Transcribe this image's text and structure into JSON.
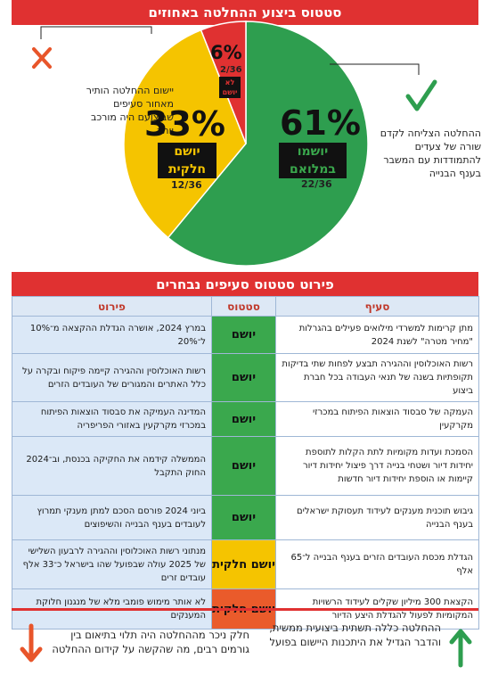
{
  "header": {
    "title": "סטטוס ביצוע ההחלטה באחוזים"
  },
  "section2": {
    "title": "פירוט סטטוס סעיפים נבחרים"
  },
  "chart_data": {
    "type": "pie",
    "slices": [
      {
        "label": "יושמו במלואם",
        "percent": 61,
        "percent_text": "61%",
        "fraction_text": "22/36",
        "count": 22,
        "color": "#2e9e4f"
      },
      {
        "label": "יושם חלקית",
        "percent": 33,
        "percent_text": "33%",
        "fraction_text": "12/36",
        "count": 12,
        "color": "#f5c400"
      },
      {
        "label": "לא יושם",
        "percent": 6,
        "percent_text": "6%",
        "fraction_text": "2/36",
        "count": 2,
        "color": "#e03131"
      }
    ],
    "total": 36
  },
  "notes": {
    "left": "יישום ההחלטה הותיר מאחור סעיפים שביצועם היה מורכב יותר",
    "right": "ההחלטה הצליחה לקדם שורה של צעדים להתמודדות עם המשבר בענף הבנייה"
  },
  "icons": {
    "cross": "cross-icon",
    "check": "check-icon",
    "arrow_down": "arrow-down-icon",
    "arrow_up": "arrow-up-icon",
    "cross_color": "#e8552a",
    "check_color": "#2e9e4f"
  },
  "table": {
    "headers": {
      "clause": "סעיף",
      "status": "סטטוס",
      "detail": "פירוט"
    },
    "rows": [
      {
        "clause": "מתן קרימות למשרדי מילואים פעילים בהגרלות \"מחיר מטרה\" לשנת 2024",
        "status": "יושם",
        "status_type": "done",
        "detail": "במרץ 2024, אושרה הגדלת ההקצאה מ־10% ל־20%"
      },
      {
        "clause": "רשות האוכלוסין וההגירה תבצע לפחות שתי בדיקות תקופתיות בשנה של תנאי העבודה בכל חברת ביצוע",
        "status": "יושם",
        "status_type": "done",
        "detail": "רשות האוכלוסין וההגירה קיימה פיקוח ובקרה על כלל האתרים והמגורים של העובדים הזרים"
      },
      {
        "clause": "העמקה של סבסוד הוצאות הפיתוח במכרזי מקרקעין",
        "status": "יושם",
        "status_type": "done",
        "detail": "המדינה העמיקה את סבסוד הוצאות הפיתוח במכרזי מקרקעין באזורי הפריפריה"
      },
      {
        "clause": "הסמכת ועדות מקומיות לתת הקלות לתוספת יחידות דיור ושטחי בנייה דרך פיצול יחידות דיור קיימות או הוספת יחידות דיור חדשות",
        "status": "יושם",
        "status_type": "done",
        "detail": "הממשלה קידמה את החקיקה בכנסת, וב־2024 החוק התקבל"
      },
      {
        "clause": "גיבוש תוכנית מענקים לעידוד תעסוקת ישראלים בענף הבנייה",
        "status": "יושם",
        "status_type": "done",
        "detail": "ביוני 2024 פורסם הסכם למתן מענקי תמרוץ לעובדים בענף הבנייה והשיפוצים"
      },
      {
        "clause": "הגדלת מכסת העובדים הזרים בענף הבנייה ל־65 אלף",
        "status": "יושם חלקית",
        "status_type": "partial",
        "detail": "מנתוני רשות האוכלוסין וההגירה לרבעון השלישי של 2025 עולה שבפועל שהו בישראל כ־33 אלף עובדים זרים"
      },
      {
        "clause": "הקצאת 300 מיליון שקלים לעידוד הרשויות המקומיות לפעול להגדלת היצע הדיור",
        "status": "יושם חלקית",
        "status_type": "partial-low",
        "detail": "לא אותר מימוש פומבי מלא של מנגנון חלוקת המענקים"
      }
    ]
  },
  "bottom": {
    "left": "חלק ניכר מההחלטה היה תלוי בתיאום בין גורמים רבים, מה שהקשה על קידום ההחלטה",
    "right": "ההחלטה כללה תשתית ביצועית ממשית, והדבר הגדיל את היתכנות היישום בפועל"
  }
}
